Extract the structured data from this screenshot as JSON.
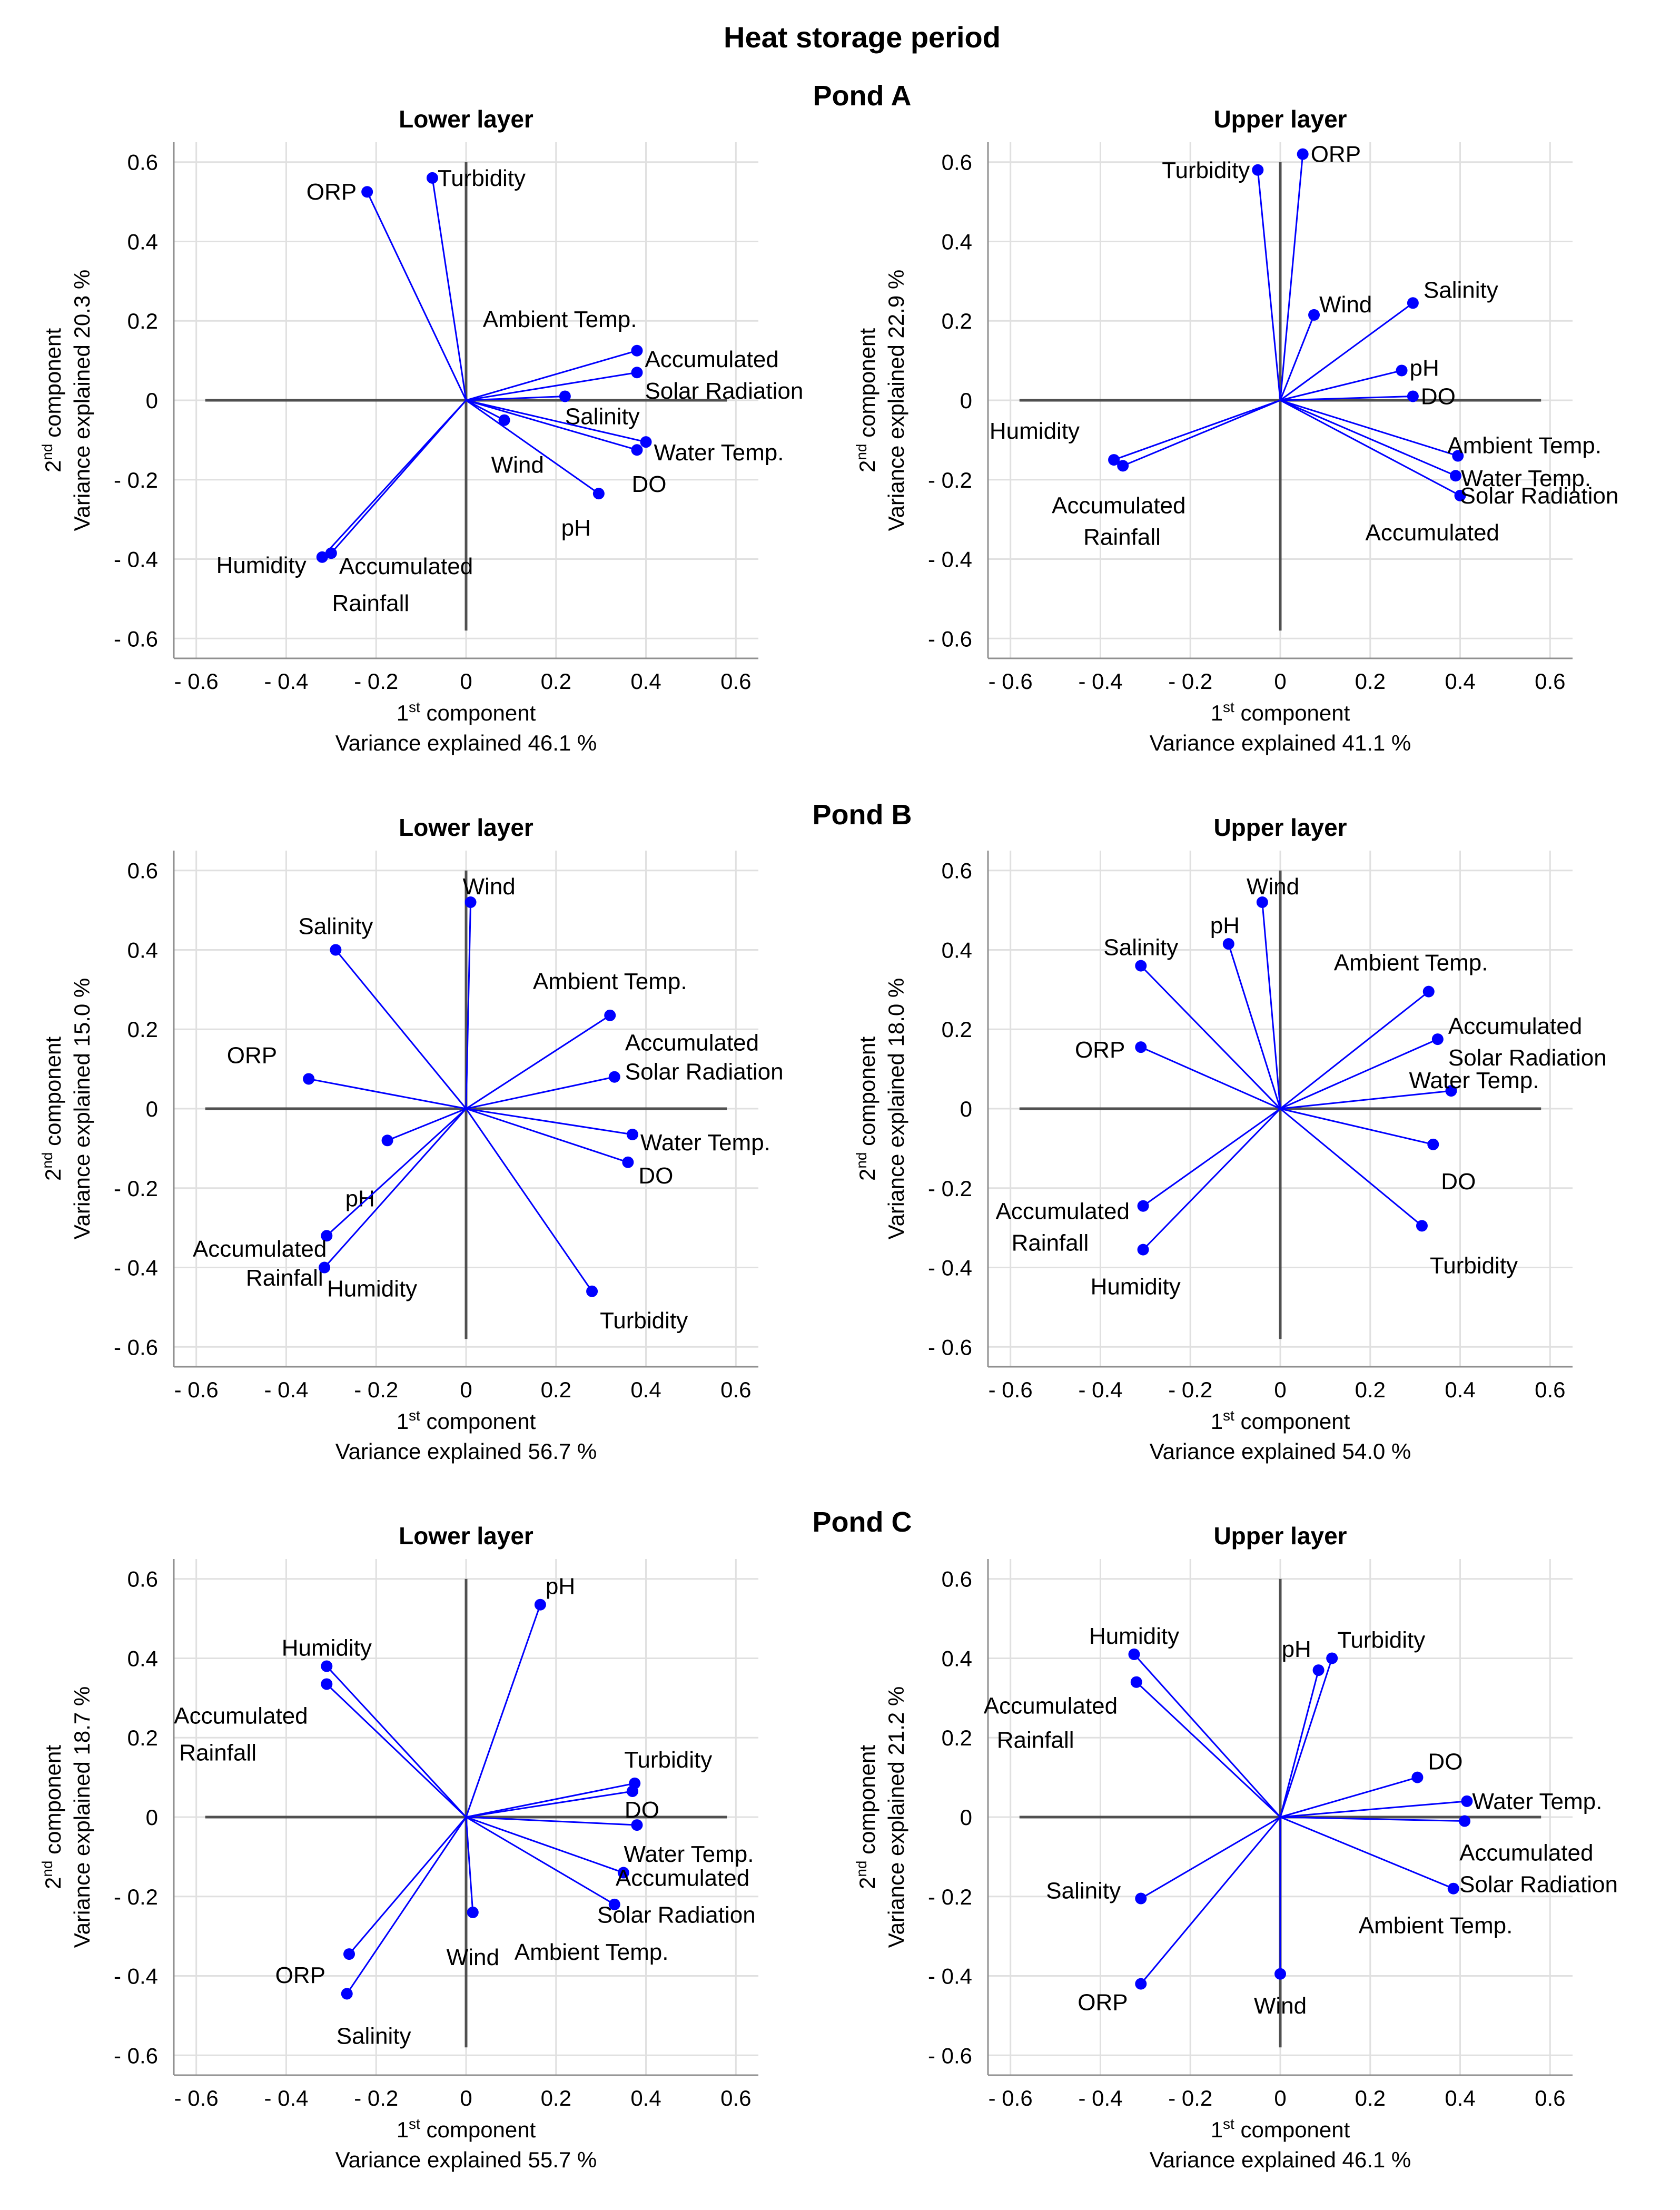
{
  "title": "Heat storage period",
  "ponds": [
    "Pond A",
    "Pond B",
    "Pond C"
  ],
  "colors": {
    "vector": "#0000ff",
    "point": "#0000ff",
    "axis": "#505050",
    "grid": "#e0e0e0"
  },
  "chart_data": [
    {
      "type": "scatter",
      "pond": "Pond A",
      "title": "Lower layer",
      "xlabel_prefix": "1",
      "xlabel_sup": "st",
      "xlabel_suffix": " component",
      "xvar": "Variance explained  46.1 %",
      "ylabel_prefix": "2",
      "ylabel_sup": "nd",
      "ylabel_suffix": " component",
      "yvar": "Variance explained  20.3 %",
      "xlim": [
        -0.65,
        0.65
      ],
      "ylim": [
        -0.65,
        0.65
      ],
      "xticks": [
        "- 0.6",
        "- 0.4",
        "- 0.2",
        "0",
        "0.2",
        "0.4",
        "0.6"
      ],
      "yticks": [
        "0.6",
        "0.4",
        "0.2",
        "0",
        "- 0.2",
        "- 0.4",
        "- 0.6"
      ],
      "points": [
        {
          "label": "ORP",
          "x": -0.22,
          "y": 0.525
        },
        {
          "label": "Turbidity",
          "x": -0.075,
          "y": 0.56
        },
        {
          "label": "Ambient Temp.",
          "x": 0.38,
          "y": 0.125
        },
        {
          "label": "Accumulated",
          "x": 0.38,
          "y": 0.07
        },
        {
          "label": "Solar Radiation",
          "x": null,
          "y": null
        },
        {
          "label": "Salinity",
          "x": 0.22,
          "y": 0.01
        },
        {
          "label": "Wind",
          "x": 0.085,
          "y": -0.05
        },
        {
          "label": "Water Temp.",
          "x": 0.4,
          "y": -0.105
        },
        {
          "label": "DO",
          "x": 0.38,
          "y": -0.125
        },
        {
          "label": "pH",
          "x": 0.295,
          "y": -0.235
        },
        {
          "label": "Humidity",
          "x": -0.32,
          "y": -0.395
        },
        {
          "label": "Accumulated",
          "x": -0.3,
          "y": -0.385
        },
        {
          "label": "Rainfall",
          "x": null,
          "y": null
        }
      ]
    },
    {
      "type": "scatter",
      "pond": "Pond A",
      "title": "Upper layer",
      "xlabel_prefix": "1",
      "xlabel_sup": "st",
      "xlabel_suffix": " component",
      "xvar": "Variance explained  41.1 %",
      "ylabel_prefix": "2",
      "ylabel_sup": "nd",
      "ylabel_suffix": " component",
      "yvar": "Variance explained  22.9 %",
      "xlim": [
        -0.65,
        0.65
      ],
      "ylim": [
        -0.65,
        0.65
      ],
      "xticks": [
        "- 0.6",
        "- 0.4",
        "- 0.2",
        "0",
        "0.2",
        "0.4",
        "0.6"
      ],
      "yticks": [
        "0.6",
        "0.4",
        "0.2",
        "0",
        "- 0.2",
        "- 0.4",
        "- 0.6"
      ],
      "points": [
        {
          "label": "Turbidity",
          "x": -0.05,
          "y": 0.58
        },
        {
          "label": "ORP",
          "x": 0.05,
          "y": 0.62
        },
        {
          "label": "Wind",
          "x": 0.075,
          "y": 0.215
        },
        {
          "label": "Salinity",
          "x": 0.295,
          "y": 0.245
        },
        {
          "label": "pH",
          "x": 0.27,
          "y": 0.075
        },
        {
          "label": "DO",
          "x": 0.295,
          "y": 0.01
        },
        {
          "label": "Ambient Temp.",
          "x": 0.395,
          "y": -0.14
        },
        {
          "label": "Water Temp.",
          "x": 0.39,
          "y": -0.19
        },
        {
          "label": "Accumulated",
          "x": 0.4,
          "y": -0.24
        },
        {
          "label": "Solar Radiation",
          "x": null,
          "y": null
        },
        {
          "label": "Humidity",
          "x": -0.37,
          "y": -0.15
        },
        {
          "label": "Accumulated",
          "x": -0.35,
          "y": -0.165
        },
        {
          "label": "Rainfall",
          "x": null,
          "y": null
        }
      ]
    },
    {
      "type": "scatter",
      "pond": "Pond B",
      "title": "Lower layer",
      "xlabel_prefix": "1",
      "xlabel_sup": "st",
      "xlabel_suffix": " component",
      "xvar": "Variance explained  56.7 %",
      "ylabel_prefix": "2",
      "ylabel_sup": "nd",
      "ylabel_suffix": " component",
      "yvar": "Variance explained  15.0 %",
      "xlim": [
        -0.65,
        0.65
      ],
      "ylim": [
        -0.65,
        0.65
      ],
      "xticks": [
        "- 0.6",
        "- 0.4",
        "- 0.2",
        "0",
        "0.2",
        "0.4",
        "0.6"
      ],
      "yticks": [
        "0.6",
        "0.4",
        "0.2",
        "0",
        "- 0.2",
        "- 0.4",
        "- 0.6"
      ],
      "points": [
        {
          "label": "Wind",
          "x": 0.01,
          "y": 0.52
        },
        {
          "label": "Salinity",
          "x": -0.29,
          "y": 0.4
        },
        {
          "label": "Ambient Temp.",
          "x": 0.32,
          "y": 0.235
        },
        {
          "label": "Accumulated",
          "x": 0.33,
          "y": 0.08
        },
        {
          "label": "Solar Radiation",
          "x": null,
          "y": null
        },
        {
          "label": "ORP",
          "x": -0.35,
          "y": 0.075
        },
        {
          "label": "Water Temp.",
          "x": 0.37,
          "y": -0.065
        },
        {
          "label": "DO",
          "x": 0.36,
          "y": -0.135
        },
        {
          "label": "pH",
          "x": -0.175,
          "y": -0.08
        },
        {
          "label": "Accumulated",
          "x": -0.31,
          "y": -0.32
        },
        {
          "label": "Rainfall",
          "x": null,
          "y": null
        },
        {
          "label": "Humidity",
          "x": -0.315,
          "y": -0.4
        },
        {
          "label": "Turbidity",
          "x": 0.28,
          "y": -0.46
        }
      ]
    },
    {
      "type": "scatter",
      "pond": "Pond B",
      "title": "Upper layer",
      "xlabel_prefix": "1",
      "xlabel_sup": "st",
      "xlabel_suffix": " component",
      "xvar": "Variance explained  54.0 %",
      "ylabel_prefix": "2",
      "ylabel_sup": "nd",
      "ylabel_suffix": " component",
      "yvar": "Variance explained  18.0 %",
      "xlim": [
        -0.65,
        0.65
      ],
      "ylim": [
        -0.65,
        0.65
      ],
      "xticks": [
        "- 0.6",
        "- 0.4",
        "- 0.2",
        "0",
        "0.2",
        "0.4",
        "0.6"
      ],
      "yticks": [
        "0.6",
        "0.4",
        "0.2",
        "0",
        "- 0.2",
        "- 0.4",
        "- 0.6"
      ],
      "points": [
        {
          "label": "Wind",
          "x": -0.04,
          "y": 0.52
        },
        {
          "label": "pH",
          "x": -0.115,
          "y": 0.415
        },
        {
          "label": "Salinity",
          "x": -0.31,
          "y": 0.36
        },
        {
          "label": "Ambient Temp.",
          "x": 0.33,
          "y": 0.295
        },
        {
          "label": "Accumulated",
          "x": 0.35,
          "y": 0.175
        },
        {
          "label": "Solar Radiation",
          "x": null,
          "y": null
        },
        {
          "label": "ORP",
          "x": -0.31,
          "y": 0.155
        },
        {
          "label": "Water Temp.",
          "x": 0.38,
          "y": 0.045
        },
        {
          "label": "DO",
          "x": 0.34,
          "y": -0.09
        },
        {
          "label": "Accumulated",
          "x": -0.305,
          "y": -0.245
        },
        {
          "label": "Rainfall",
          "x": null,
          "y": null
        },
        {
          "label": "Turbidity",
          "x": 0.315,
          "y": -0.295
        },
        {
          "label": "Humidity",
          "x": -0.305,
          "y": -0.355
        }
      ]
    },
    {
      "type": "scatter",
      "pond": "Pond C",
      "title": "Lower layer",
      "xlabel_prefix": "1",
      "xlabel_sup": "st",
      "xlabel_suffix": " component",
      "xvar": "Variance explained  55.7 %",
      "ylabel_prefix": "2",
      "ylabel_sup": "nd",
      "ylabel_suffix": " component",
      "yvar": "Variance explained  18.7 %",
      "xlim": [
        -0.65,
        0.65
      ],
      "ylim": [
        -0.65,
        0.65
      ],
      "xticks": [
        "- 0.6",
        "- 0.4",
        "- 0.2",
        "0",
        "0.2",
        "0.4",
        "0.6"
      ],
      "yticks": [
        "0.6",
        "0.4",
        "0.2",
        "0",
        "- 0.2",
        "- 0.4",
        "- 0.6"
      ],
      "points": [
        {
          "label": "pH",
          "x": 0.165,
          "y": 0.535
        },
        {
          "label": "Humidity",
          "x": -0.31,
          "y": 0.38
        },
        {
          "label": "Accumulated",
          "x": -0.31,
          "y": 0.335
        },
        {
          "label": "Rainfall",
          "x": null,
          "y": null
        },
        {
          "label": "Turbidity",
          "x": 0.375,
          "y": 0.085
        },
        {
          "label": "DO",
          "x": 0.37,
          "y": 0.065
        },
        {
          "label": "Water Temp.",
          "x": 0.38,
          "y": -0.02
        },
        {
          "label": "Accumulated",
          "x": 0.35,
          "y": -0.14
        },
        {
          "label": "Solar Radiation",
          "x": null,
          "y": null
        },
        {
          "label": "Ambient Temp.",
          "x": 0.33,
          "y": -0.22
        },
        {
          "label": "Wind",
          "x": 0.015,
          "y": -0.24
        },
        {
          "label": "ORP",
          "x": -0.26,
          "y": -0.345
        },
        {
          "label": "Salinity",
          "x": -0.265,
          "y": -0.445
        }
      ]
    },
    {
      "type": "scatter",
      "pond": "Pond C",
      "title": "Upper layer",
      "xlabel_prefix": "1",
      "xlabel_sup": "st",
      "xlabel_suffix": " component",
      "xvar": "Variance explained  46.1 %",
      "ylabel_prefix": "2",
      "ylabel_sup": "nd",
      "ylabel_suffix": " component",
      "yvar": "Variance explained  21.2 %",
      "xlim": [
        -0.65,
        0.65
      ],
      "ylim": [
        -0.65,
        0.65
      ],
      "xticks": [
        "- 0.6",
        "- 0.4",
        "- 0.2",
        "0",
        "0.2",
        "0.4",
        "0.6"
      ],
      "yticks": [
        "0.6",
        "0.4",
        "0.2",
        "0",
        "- 0.2",
        "- 0.4",
        "- 0.6"
      ],
      "points": [
        {
          "label": "Humidity",
          "x": -0.325,
          "y": 0.41
        },
        {
          "label": "Accumulated",
          "x": -0.32,
          "y": 0.34
        },
        {
          "label": "Rainfall",
          "x": null,
          "y": null
        },
        {
          "label": "pH",
          "x": 0.085,
          "y": 0.37
        },
        {
          "label": "Turbidity",
          "x": 0.115,
          "y": 0.4
        },
        {
          "label": "DO",
          "x": 0.305,
          "y": 0.1
        },
        {
          "label": "Water Temp.",
          "x": 0.415,
          "y": 0.04
        },
        {
          "label": "Accumulated",
          "x": 0.41,
          "y": -0.01
        },
        {
          "label": "Solar Radiation",
          "x": null,
          "y": null
        },
        {
          "label": "Ambient Temp.",
          "x": 0.385,
          "y": -0.18
        },
        {
          "label": "Salinity",
          "x": -0.31,
          "y": -0.205
        },
        {
          "label": "Wind",
          "x": 0.0,
          "y": -0.395
        },
        {
          "label": "ORP",
          "x": -0.31,
          "y": -0.42
        }
      ]
    }
  ]
}
